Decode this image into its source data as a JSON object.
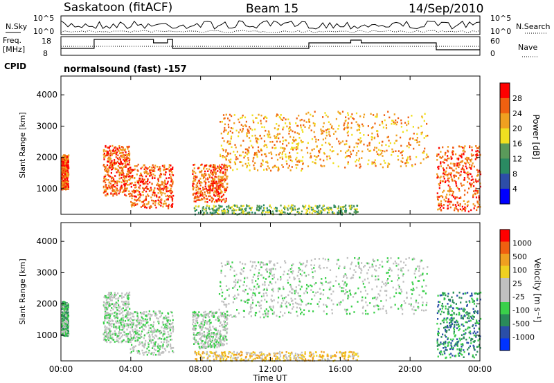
{
  "header": {
    "station": "Saskatoon (fitACF)",
    "beam": "Beam 15",
    "date": "14/Sep/2010"
  },
  "nsky_panel": {
    "left_label": "N.Sky",
    "left_ticks": [
      "10^5",
      "10^0"
    ],
    "right_label": "N.Search",
    "right_ticks": [
      "10^5",
      "10^0"
    ]
  },
  "freq_panel": {
    "left_label_1": "Freq.",
    "left_label_2": "[MHz]",
    "left_ticks": [
      "18",
      "8"
    ],
    "right_label": "Nave",
    "right_ticks": [
      "60",
      "0"
    ]
  },
  "cpid": {
    "label": "CPID",
    "value": "normalsound (fast) -157"
  },
  "chart_data": [
    {
      "type": "heatmap",
      "title": "",
      "xlabel": "Time UT",
      "ylabel": "Slant Range [km]",
      "x_ticks": [
        "00:00",
        "04:00",
        "08:00",
        "12:00",
        "16:00",
        "20:00",
        "00:00"
      ],
      "y_ticks": [
        1000,
        2000,
        3000,
        4000
      ],
      "ylim": [
        180,
        4600
      ],
      "colorbar": {
        "label": "Power [dB]",
        "ticks": [
          "4",
          "8",
          "12",
          "16",
          "20",
          "24",
          "28"
        ],
        "colors": [
          "#0000ff",
          "#2d4da8",
          "#2a8a62",
          "#5a9a5a",
          "#f0e020",
          "#f0a020",
          "#f06010",
          "#ff0000"
        ]
      },
      "scatter_regions": [
        {
          "t0": 0.0,
          "t1": 0.4,
          "r0": 1000,
          "r1": 2100,
          "level": 6
        },
        {
          "t0": 2.4,
          "t1": 3.9,
          "r0": 800,
          "r1": 2400,
          "level": 6
        },
        {
          "t0": 3.9,
          "t1": 6.4,
          "r0": 400,
          "r1": 1800,
          "level": 6
        },
        {
          "t0": 7.5,
          "t1": 9.5,
          "r0": 600,
          "r1": 1800,
          "level": 6
        },
        {
          "t0": 9.0,
          "t1": 14.0,
          "r0": 1600,
          "r1": 3400,
          "level": 5
        },
        {
          "t0": 14.0,
          "t1": 21.0,
          "r0": 1700,
          "r1": 3500,
          "level": 5
        },
        {
          "t0": 21.5,
          "t1": 24.0,
          "r0": 300,
          "r1": 2400,
          "level": 6
        },
        {
          "t0": 7.5,
          "t1": 17.0,
          "r0": 200,
          "r1": 500,
          "level": 3
        }
      ]
    },
    {
      "type": "heatmap",
      "title": "",
      "xlabel": "Time UT",
      "ylabel": "Slant Range [km]",
      "x_ticks": [
        "00:00",
        "04:00",
        "08:00",
        "12:00",
        "16:00",
        "20:00",
        "00:00"
      ],
      "y_ticks": [
        1000,
        2000,
        3000,
        4000
      ],
      "ylim": [
        180,
        4600
      ],
      "colorbar": {
        "label": "Velocity [m s⁻¹]",
        "ticks": [
          "1000",
          "500",
          "100",
          "25",
          "-25",
          "-100",
          "-500",
          "-1000"
        ],
        "colors": [
          "#0033ff",
          "#2a4ea8",
          "#2a8a5a",
          "#3ad04a",
          "#c0c0c0",
          "#c0c0c0",
          "#f0d020",
          "#f0a020",
          "#f06010",
          "#ff0000"
        ]
      },
      "scatter_regions": [
        {
          "t0": 0.0,
          "t1": 0.4,
          "r0": 1000,
          "r1": 2100,
          "level": 3
        },
        {
          "t0": 2.4,
          "t1": 3.9,
          "r0": 800,
          "r1": 2400,
          "level": 4
        },
        {
          "t0": 3.9,
          "t1": 6.4,
          "r0": 400,
          "r1": 1800,
          "level": 4
        },
        {
          "t0": 7.5,
          "t1": 9.5,
          "r0": 600,
          "r1": 1800,
          "level": 4
        },
        {
          "t0": 9.0,
          "t1": 14.0,
          "r0": 1600,
          "r1": 3400,
          "level": 4
        },
        {
          "t0": 14.0,
          "t1": 21.0,
          "r0": 1700,
          "r1": 3500,
          "level": 4
        },
        {
          "t0": 21.5,
          "t1": 24.0,
          "r0": 300,
          "r1": 2400,
          "level": 2
        },
        {
          "t0": 7.5,
          "t1": 17.0,
          "r0": 200,
          "r1": 500,
          "level": 6
        }
      ]
    }
  ]
}
